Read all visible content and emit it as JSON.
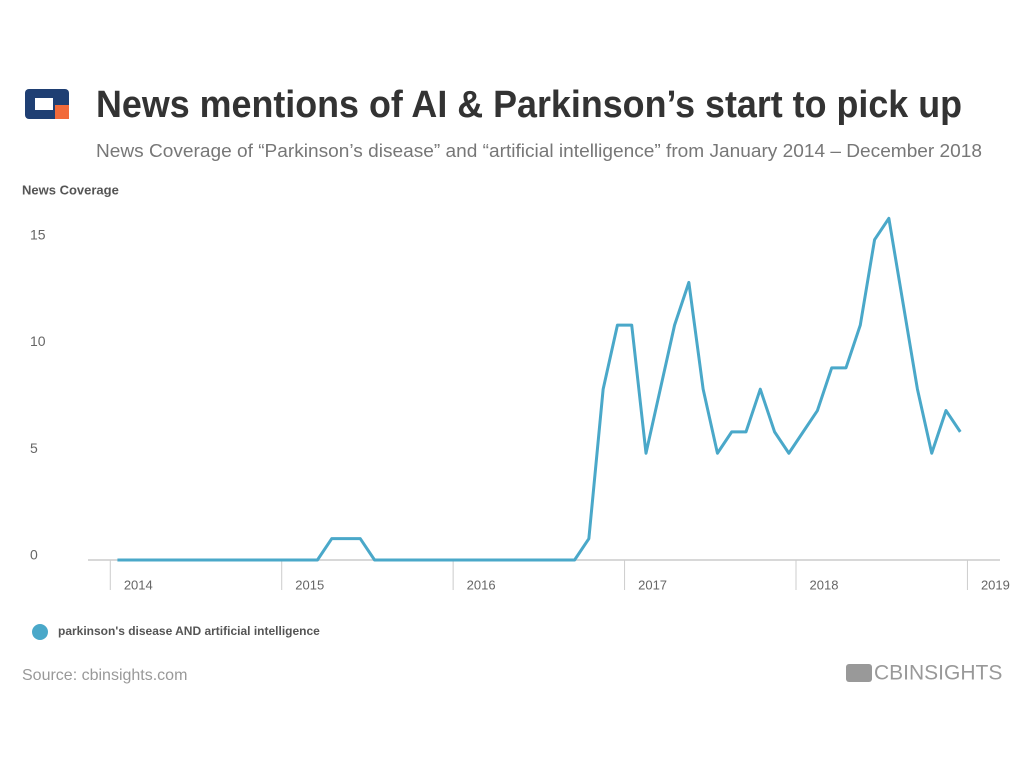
{
  "chart_data": {
    "type": "line",
    "title": "News mentions of AI & Parkinson’s start to pick up",
    "subtitle": "News Coverage of “Parkinson’s disease” and “artificial intelligence” from January 2014 – December 2018",
    "y_axis_label": "News Coverage",
    "source": "Source: cbinsights.com",
    "brand": "CBINSIGHTS",
    "x": [
      "2014-01",
      "2014-02",
      "2014-03",
      "2014-04",
      "2014-05",
      "2014-06",
      "2014-07",
      "2014-08",
      "2014-09",
      "2014-10",
      "2014-11",
      "2014-12",
      "2015-01",
      "2015-02",
      "2015-03",
      "2015-04",
      "2015-05",
      "2015-06",
      "2015-07",
      "2015-08",
      "2015-09",
      "2015-10",
      "2015-11",
      "2015-12",
      "2016-01",
      "2016-02",
      "2016-03",
      "2016-04",
      "2016-05",
      "2016-06",
      "2016-07",
      "2016-08",
      "2016-09",
      "2016-10",
      "2016-11",
      "2016-12",
      "2017-01",
      "2017-02",
      "2017-03",
      "2017-04",
      "2017-05",
      "2017-06",
      "2017-07",
      "2017-08",
      "2017-09",
      "2017-10",
      "2017-11",
      "2017-12",
      "2018-01",
      "2018-02",
      "2018-03",
      "2018-04",
      "2018-05",
      "2018-06",
      "2018-07",
      "2018-08",
      "2018-09",
      "2018-10",
      "2018-11",
      "2018-12"
    ],
    "series": [
      {
        "name": "parkinson's disease AND artificial intelligence",
        "color": "#4aa8c9",
        "values": [
          0,
          0,
          0,
          0,
          0,
          0,
          0,
          0,
          0,
          0,
          0,
          0,
          0,
          0,
          0,
          1,
          1,
          1,
          0,
          0,
          0,
          0,
          0,
          0,
          0,
          0,
          0,
          0,
          0,
          0,
          0,
          0,
          0,
          1,
          8,
          11,
          11,
          5,
          8,
          11,
          13,
          8,
          5,
          6,
          6,
          8,
          6,
          5,
          6,
          7,
          9,
          9,
          11,
          15,
          16,
          12,
          8,
          5,
          7,
          6
        ]
      }
    ],
    "xlim": [
      2013.87,
      2019.19
    ],
    "xticks": [
      2014,
      2015,
      2016,
      2017,
      2018,
      2019
    ],
    "ylim": [
      0,
      17
    ],
    "yticks": [
      0,
      5,
      10,
      15
    ],
    "grid": false,
    "legend": "bottom-left"
  }
}
